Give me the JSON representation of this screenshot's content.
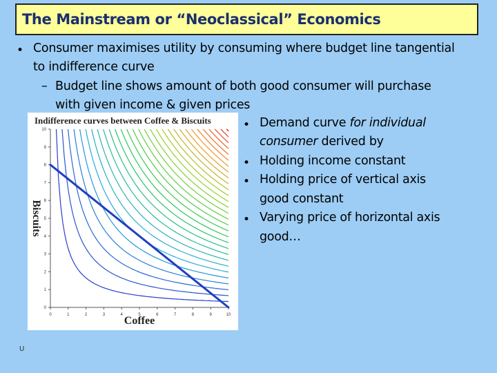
{
  "slide": {
    "title": "The Mainstream or “Neoclassical” Economics",
    "bullet1_line1": "Consumer maximises utility by consuming where budget line tangential",
    "bullet1_line2": "to indifference curve",
    "sub1_line1": "Budget line shows amount of both good consumer will purchase",
    "sub1_line2": "with given income & given prices",
    "right_bullets": {
      "b1_prefix": "Demand curve ",
      "b1_em": "for individual",
      "b1_line2_em": "consumer",
      "b1_line2_rest": " derived by",
      "b2": "Holding income constant",
      "b3_line1": "Holding price of vertical axis",
      "b3_line2": "good constant",
      "b4_line1": "Varying price of horizontal axis",
      "b4_line2": "good…"
    },
    "corner_mark": "U"
  },
  "chart_data": {
    "type": "line",
    "title": "Indifference curves between Coffee & Biscuits",
    "xlabel": "Coffee",
    "ylabel": "Biscuits",
    "xlim": [
      0,
      10
    ],
    "ylim": [
      0,
      10
    ],
    "xticks": [
      "0",
      "1",
      "2",
      "3",
      "4",
      "5",
      "6",
      "7",
      "8",
      "9",
      "10"
    ],
    "yticks": [
      "0",
      "1",
      "2",
      "3",
      "4",
      "5",
      "6",
      "7",
      "8",
      "9",
      "10"
    ],
    "indifference_levels": [
      1,
      2,
      3,
      4,
      5,
      6,
      7,
      8,
      9,
      10,
      11,
      12,
      13,
      14,
      15,
      16,
      17,
      18,
      19,
      20,
      21,
      22,
      23,
      24,
      25,
      26,
      27,
      28,
      29,
      30
    ],
    "budget_line": {
      "x": [
        0,
        10
      ],
      "y": [
        8,
        0
      ]
    },
    "colors": {
      "budget": "#1f3fbf",
      "low": "#3030c0",
      "mid": "#30c030",
      "high": "#e03030"
    }
  }
}
